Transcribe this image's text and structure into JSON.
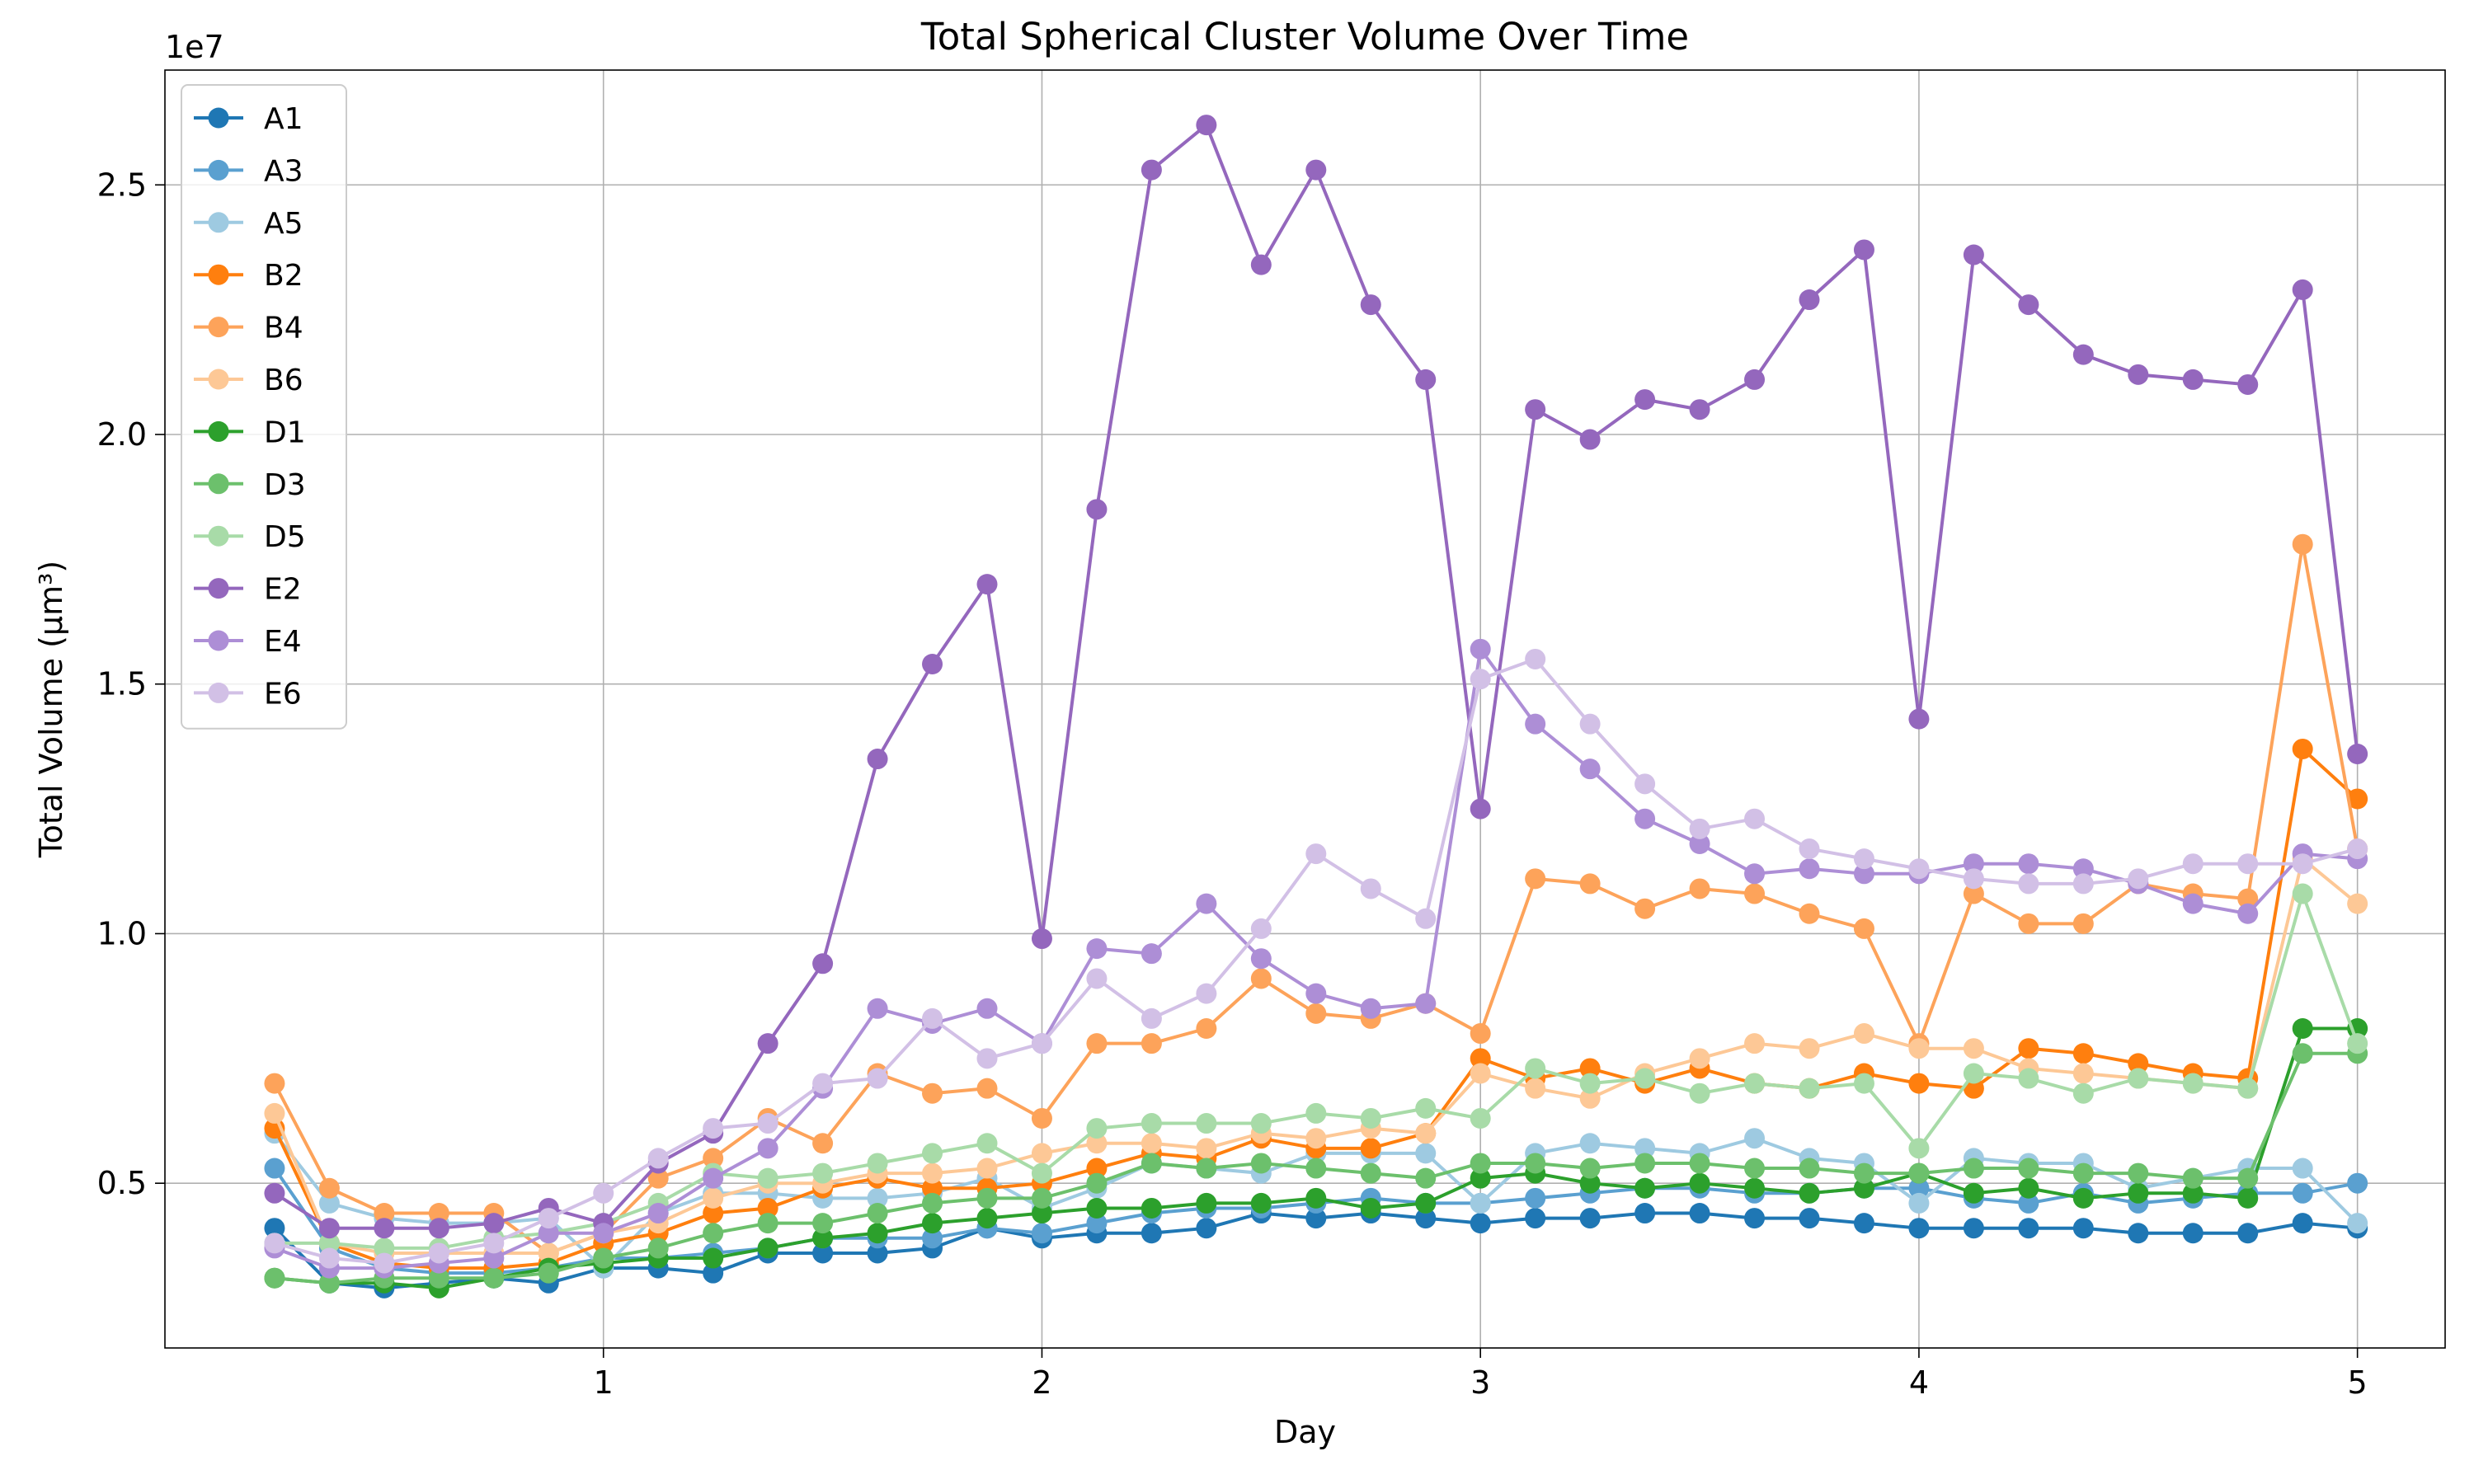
{
  "chart_data": {
    "type": "line",
    "title": "Total Spherical Cluster Volume Over Time",
    "xlabel": "Day",
    "ylabel": "Total Volume (µm³)",
    "y_offset_label": "1e7",
    "x_ticks": [
      1,
      2,
      3,
      4,
      5
    ],
    "x_tick_labels": [
      "1",
      "2",
      "3",
      "4",
      "5"
    ],
    "y_ticks": [
      0.5,
      1.0,
      1.5,
      2.0,
      2.5
    ],
    "y_tick_labels": [
      "0.5",
      "1.0",
      "1.5",
      "2.0",
      "2.5"
    ],
    "xlim": [
      0.0,
      5.2
    ],
    "ylim": [
      0.17,
      2.73
    ],
    "y_units": "1e7 µm³",
    "grid": true,
    "legend_position": "top-left",
    "x": [
      0.25,
      0.375,
      0.5,
      0.625,
      0.75,
      0.875,
      1.0,
      1.125,
      1.25,
      1.375,
      1.5,
      1.625,
      1.75,
      1.875,
      2.0,
      2.125,
      2.25,
      2.375,
      2.5,
      2.625,
      2.75,
      2.875,
      3.0,
      3.125,
      3.25,
      3.375,
      3.5,
      3.625,
      3.75,
      3.875,
      4.0,
      4.125,
      4.25,
      4.375,
      4.5,
      4.625,
      4.75,
      4.875,
      5.0
    ],
    "series": [
      {
        "name": "A1",
        "color": "#1f77b4",
        "values": [
          0.41,
          0.3,
          0.29,
          0.3,
          0.31,
          0.3,
          0.33,
          0.33,
          0.32,
          0.36,
          0.36,
          0.36,
          0.37,
          0.41,
          0.39,
          0.4,
          0.4,
          0.41,
          0.44,
          0.43,
          0.44,
          0.43,
          0.42,
          0.43,
          0.43,
          0.44,
          0.44,
          0.43,
          0.43,
          0.42,
          0.41,
          0.41,
          0.41,
          0.41,
          0.4,
          0.4,
          0.4,
          0.42,
          0.41
        ]
      },
      {
        "name": "A3",
        "color": "#5aa0d0",
        "values": [
          0.53,
          0.37,
          0.33,
          0.32,
          0.32,
          0.33,
          0.35,
          0.35,
          0.36,
          0.37,
          0.39,
          0.39,
          0.39,
          0.41,
          0.4,
          0.42,
          0.44,
          0.45,
          0.45,
          0.46,
          0.47,
          0.46,
          0.46,
          0.47,
          0.48,
          0.49,
          0.49,
          0.48,
          0.48,
          0.49,
          0.49,
          0.47,
          0.46,
          0.48,
          0.46,
          0.47,
          0.48,
          0.48,
          0.5
        ]
      },
      {
        "name": "A5",
        "color": "#9ecae1",
        "values": [
          0.6,
          0.46,
          0.43,
          0.42,
          0.42,
          0.43,
          0.33,
          0.44,
          0.48,
          0.48,
          0.47,
          0.47,
          0.48,
          0.51,
          0.45,
          0.49,
          0.54,
          0.53,
          0.52,
          0.56,
          0.56,
          0.56,
          0.46,
          0.56,
          0.58,
          0.57,
          0.56,
          0.59,
          0.55,
          0.54,
          0.46,
          0.55,
          0.54,
          0.54,
          0.49,
          0.51,
          0.53,
          0.53,
          0.42
        ]
      },
      {
        "name": "B2",
        "color": "#ff7f0e",
        "values": [
          0.61,
          0.38,
          0.34,
          0.33,
          0.33,
          0.34,
          0.38,
          0.4,
          0.44,
          0.45,
          0.49,
          0.51,
          0.49,
          0.49,
          0.5,
          0.53,
          0.56,
          0.55,
          0.59,
          0.57,
          0.57,
          0.6,
          0.75,
          0.71,
          0.73,
          0.7,
          0.73,
          0.7,
          0.69,
          0.72,
          0.7,
          0.69,
          0.77,
          0.76,
          0.74,
          0.72,
          0.71,
          1.37,
          1.27
        ]
      },
      {
        "name": "B4",
        "color": "#fda35a",
        "values": [
          0.7,
          0.49,
          0.44,
          0.44,
          0.44,
          0.36,
          0.4,
          0.51,
          0.55,
          0.63,
          0.58,
          0.72,
          0.68,
          0.69,
          0.63,
          0.78,
          0.78,
          0.81,
          0.91,
          0.84,
          0.83,
          0.86,
          0.8,
          1.11,
          1.1,
          1.05,
          1.09,
          1.08,
          1.04,
          1.01,
          0.78,
          1.08,
          1.02,
          1.02,
          1.1,
          1.08,
          1.07,
          1.78,
          1.17
        ]
      },
      {
        "name": "B6",
        "color": "#fdc896",
        "values": [
          0.64,
          0.38,
          0.36,
          0.36,
          0.36,
          0.36,
          0.4,
          0.42,
          0.47,
          0.5,
          0.5,
          0.52,
          0.52,
          0.53,
          0.56,
          0.58,
          0.58,
          0.57,
          0.6,
          0.59,
          0.61,
          0.6,
          0.72,
          0.69,
          0.67,
          0.72,
          0.75,
          0.78,
          0.77,
          0.8,
          0.77,
          0.77,
          0.73,
          0.72,
          0.71,
          0.7,
          0.69,
          1.15,
          1.06
        ]
      },
      {
        "name": "D1",
        "color": "#2ca02c",
        "values": [
          0.31,
          0.3,
          0.3,
          0.29,
          0.31,
          0.33,
          0.34,
          0.35,
          0.35,
          0.37,
          0.39,
          0.4,
          0.42,
          0.43,
          0.44,
          0.45,
          0.45,
          0.46,
          0.46,
          0.47,
          0.45,
          0.46,
          0.51,
          0.52,
          0.5,
          0.49,
          0.5,
          0.49,
          0.48,
          0.49,
          0.52,
          0.48,
          0.49,
          0.47,
          0.48,
          0.48,
          0.47,
          0.81,
          0.81
        ]
      },
      {
        "name": "D3",
        "color": "#6cc06c",
        "values": [
          0.31,
          0.3,
          0.31,
          0.31,
          0.31,
          0.32,
          0.35,
          0.37,
          0.4,
          0.42,
          0.42,
          0.44,
          0.46,
          0.47,
          0.47,
          0.5,
          0.54,
          0.53,
          0.54,
          0.53,
          0.52,
          0.51,
          0.54,
          0.54,
          0.53,
          0.54,
          0.54,
          0.53,
          0.53,
          0.52,
          0.52,
          0.53,
          0.53,
          0.52,
          0.52,
          0.51,
          0.51,
          0.76,
          0.76
        ]
      },
      {
        "name": "D5",
        "color": "#a8dba8",
        "values": [
          0.38,
          0.38,
          0.37,
          0.37,
          0.39,
          0.4,
          0.42,
          0.46,
          0.52,
          0.51,
          0.52,
          0.54,
          0.56,
          0.58,
          0.52,
          0.61,
          0.62,
          0.62,
          0.62,
          0.64,
          0.63,
          0.65,
          0.63,
          0.73,
          0.7,
          0.71,
          0.68,
          0.7,
          0.69,
          0.7,
          0.57,
          0.72,
          0.71,
          0.68,
          0.71,
          0.7,
          0.69,
          1.08,
          0.78
        ]
      },
      {
        "name": "E2",
        "color": "#9467bd",
        "values": [
          0.48,
          0.41,
          0.41,
          0.41,
          0.42,
          0.45,
          0.42,
          0.54,
          0.6,
          0.78,
          0.94,
          1.35,
          1.54,
          1.7,
          0.99,
          1.85,
          2.53,
          2.62,
          2.34,
          2.53,
          2.26,
          2.11,
          1.25,
          2.05,
          1.99,
          2.07,
          2.05,
          2.11,
          2.27,
          2.37,
          1.43,
          2.36,
          2.26,
          2.16,
          2.12,
          2.11,
          2.1,
          2.29,
          1.36
        ]
      },
      {
        "name": "E4",
        "color": "#ad8ed6",
        "values": [
          0.37,
          0.33,
          0.33,
          0.34,
          0.35,
          0.4,
          0.4,
          0.44,
          0.51,
          0.57,
          0.69,
          0.85,
          0.82,
          0.85,
          0.78,
          0.97,
          0.96,
          1.06,
          0.95,
          0.88,
          0.85,
          0.86,
          1.57,
          1.42,
          1.33,
          1.23,
          1.18,
          1.12,
          1.13,
          1.12,
          1.12,
          1.14,
          1.14,
          1.13,
          1.1,
          1.06,
          1.04,
          1.16,
          1.15
        ]
      },
      {
        "name": "E6",
        "color": "#d2c0e6",
        "values": [
          0.38,
          0.35,
          0.34,
          0.36,
          0.38,
          0.43,
          0.48,
          0.55,
          0.61,
          0.62,
          0.7,
          0.71,
          0.83,
          0.75,
          0.78,
          0.91,
          0.83,
          0.88,
          1.01,
          1.16,
          1.09,
          1.03,
          1.51,
          1.55,
          1.42,
          1.3,
          1.21,
          1.23,
          1.17,
          1.15,
          1.13,
          1.11,
          1.1,
          1.1,
          1.11,
          1.14,
          1.14,
          1.14,
          1.17
        ]
      }
    ]
  }
}
